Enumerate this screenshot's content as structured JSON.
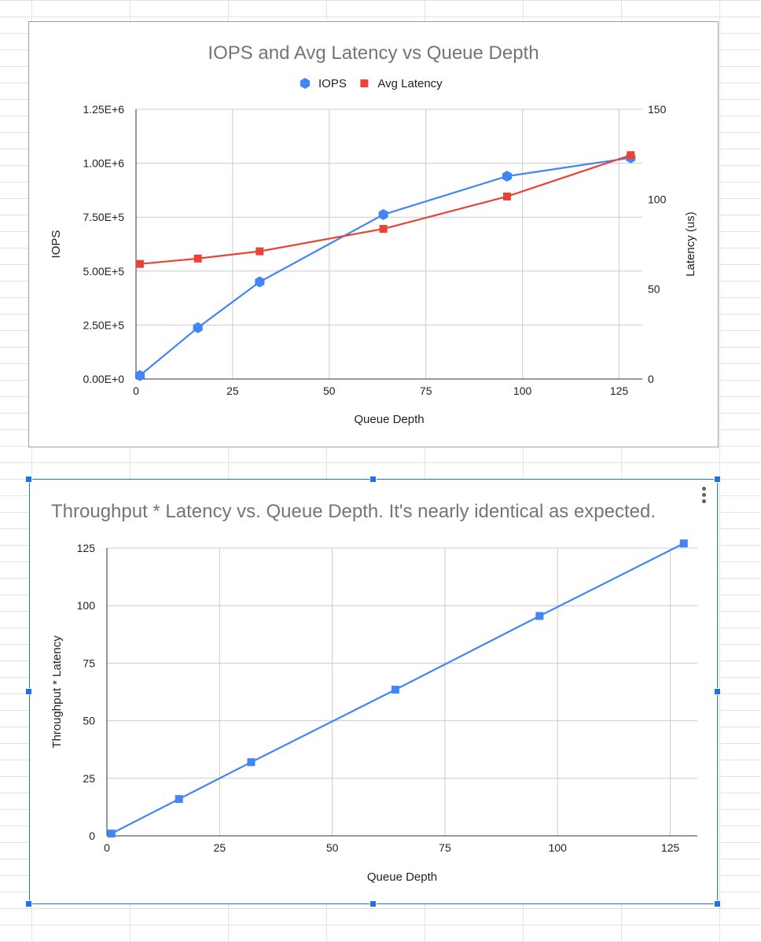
{
  "chart_data": [
    {
      "type": "line",
      "title": "IOPS and Avg Latency vs Queue Depth",
      "xlabel": "Queue Depth",
      "ylabel": "IOPS",
      "y2label": "Latency (us)",
      "xlim": [
        0,
        131
      ],
      "ylim": [
        0,
        1250000
      ],
      "y2lim": [
        0,
        150
      ],
      "x_ticks": [
        0,
        25,
        50,
        75,
        100,
        125
      ],
      "x_tick_labels": [
        "0",
        "25",
        "50",
        "75",
        "100",
        "125"
      ],
      "y_ticks": [
        0,
        250000,
        500000,
        750000,
        1000000,
        1250000
      ],
      "y_tick_labels": [
        "0.00E+0",
        "2.50E+5",
        "5.00E+5",
        "7.50E+5",
        "1.00E+6",
        "1.25E+6"
      ],
      "y2_ticks": [
        0,
        50,
        100,
        150
      ],
      "y2_tick_labels": [
        "0",
        "50",
        "100",
        "150"
      ],
      "grid": true,
      "legend": "top",
      "series": [
        {
          "name": "IOPS",
          "axis": "left",
          "color": "#4285f4",
          "marker": "hexagon",
          "x": [
            1,
            16,
            32,
            64,
            96,
            128
          ],
          "values": [
            16000,
            238000,
            450000,
            762000,
            940000,
            1025000
          ]
        },
        {
          "name": "Avg Latency",
          "axis": "right",
          "color": "#ea4335",
          "marker": "square",
          "x": [
            1,
            16,
            32,
            64,
            96,
            128
          ],
          "values": [
            64,
            67,
            71,
            83.5,
            101.5,
            124.5
          ]
        }
      ]
    },
    {
      "type": "line",
      "title": "Throughput * Latency vs. Queue Depth. It's nearly identical as expected.",
      "xlabel": "Queue Depth",
      "ylabel": "Throughput * Latency",
      "xlim": [
        0,
        131
      ],
      "ylim": [
        0,
        125
      ],
      "x_ticks": [
        0,
        25,
        50,
        75,
        100,
        125
      ],
      "x_tick_labels": [
        "0",
        "25",
        "50",
        "75",
        "100",
        "125"
      ],
      "y_ticks": [
        0,
        25,
        50,
        75,
        100,
        125
      ],
      "y_tick_labels": [
        "0",
        "25",
        "50",
        "75",
        "100",
        "125"
      ],
      "grid": true,
      "series": [
        {
          "color": "#4285f4",
          "marker": "square",
          "x": [
            1,
            16,
            32,
            64,
            96,
            128
          ],
          "values": [
            1,
            16,
            32,
            63.5,
            95.5,
            127
          ]
        }
      ]
    }
  ]
}
